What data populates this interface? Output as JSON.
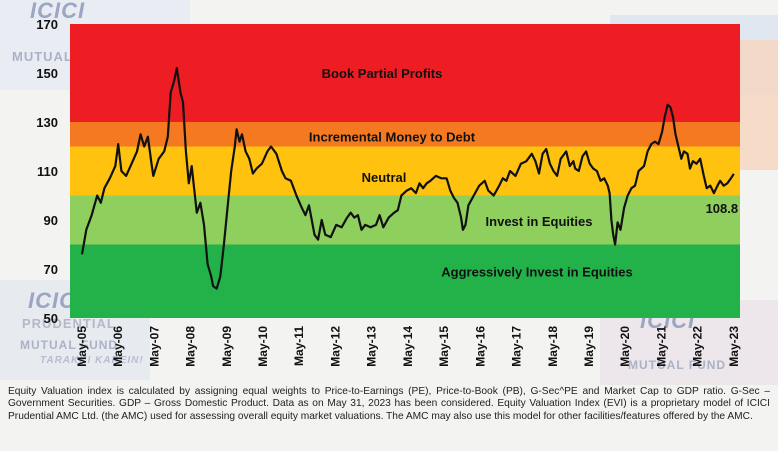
{
  "chart_data": {
    "type": "line",
    "ylim": [
      50,
      170
    ],
    "y_ticks": [
      50,
      70,
      90,
      110,
      130,
      150,
      170
    ],
    "x_tick_labels": [
      "May-05",
      "May-06",
      "May-07",
      "May-08",
      "May-09",
      "May-10",
      "May-11",
      "May-12",
      "May-13",
      "May-14",
      "May-15",
      "May-16",
      "May-17",
      "May-18",
      "May-19",
      "May-20",
      "May-21",
      "May-22",
      "May-23"
    ],
    "zones": [
      {
        "label": "Aggressively Invest in Equities",
        "from": 50,
        "to": 80,
        "color": "#23b24a"
      },
      {
        "label": "Invest in Equities",
        "from": 80,
        "to": 100,
        "color": "#8fcf5e"
      },
      {
        "label": "Neutral",
        "from": 100,
        "to": 120,
        "color": "#ffc20e"
      },
      {
        "label": "Incremental Money to Debt",
        "from": 120,
        "to": 130,
        "color": "#f47920"
      },
      {
        "label": "Book Partial Profits",
        "from": 130,
        "to": 170,
        "color": "#ee1d23"
      }
    ],
    "last_value_label": "108.8",
    "series": [
      {
        "color": "#111111",
        "points": [
          [
            2005.33,
            76
          ],
          [
            2005.45,
            86
          ],
          [
            2005.6,
            92
          ],
          [
            2005.75,
            100
          ],
          [
            2005.85,
            97
          ],
          [
            2005.95,
            103
          ],
          [
            2006.1,
            107
          ],
          [
            2006.25,
            112
          ],
          [
            2006.33,
            121
          ],
          [
            2006.42,
            110
          ],
          [
            2006.55,
            108
          ],
          [
            2006.7,
            113
          ],
          [
            2006.85,
            118
          ],
          [
            2006.95,
            125
          ],
          [
            2007.05,
            120
          ],
          [
            2007.15,
            124
          ],
          [
            2007.25,
            113
          ],
          [
            2007.3,
            108
          ],
          [
            2007.45,
            115
          ],
          [
            2007.6,
            118
          ],
          [
            2007.7,
            124
          ],
          [
            2007.78,
            142
          ],
          [
            2007.88,
            147
          ],
          [
            2007.95,
            152
          ],
          [
            2008.05,
            142
          ],
          [
            2008.12,
            138
          ],
          [
            2008.2,
            118
          ],
          [
            2008.28,
            105
          ],
          [
            2008.36,
            112
          ],
          [
            2008.45,
            100
          ],
          [
            2008.5,
            93
          ],
          [
            2008.6,
            97
          ],
          [
            2008.7,
            88
          ],
          [
            2008.8,
            72
          ],
          [
            2008.9,
            67
          ],
          [
            2008.95,
            63
          ],
          [
            2009.05,
            62
          ],
          [
            2009.15,
            67
          ],
          [
            2009.25,
            80
          ],
          [
            2009.35,
            95
          ],
          [
            2009.45,
            110
          ],
          [
            2009.55,
            120
          ],
          [
            2009.6,
            127
          ],
          [
            2009.68,
            122
          ],
          [
            2009.75,
            125
          ],
          [
            2009.85,
            118
          ],
          [
            2009.95,
            115
          ],
          [
            2010.05,
            109
          ],
          [
            2010.15,
            111
          ],
          [
            2010.3,
            113
          ],
          [
            2010.45,
            118
          ],
          [
            2010.55,
            120
          ],
          [
            2010.7,
            117
          ],
          [
            2010.85,
            110
          ],
          [
            2010.95,
            107
          ],
          [
            2011.1,
            106
          ],
          [
            2011.25,
            100
          ],
          [
            2011.4,
            95
          ],
          [
            2011.5,
            92
          ],
          [
            2011.6,
            96
          ],
          [
            2011.75,
            84
          ],
          [
            2011.85,
            82
          ],
          [
            2011.95,
            90
          ],
          [
            2012.05,
            84
          ],
          [
            2012.2,
            83
          ],
          [
            2012.35,
            88
          ],
          [
            2012.5,
            87
          ],
          [
            2012.65,
            91
          ],
          [
            2012.75,
            93
          ],
          [
            2012.85,
            91
          ],
          [
            2012.95,
            92
          ],
          [
            2013.05,
            86
          ],
          [
            2013.15,
            88
          ],
          [
            2013.3,
            87
          ],
          [
            2013.45,
            88
          ],
          [
            2013.55,
            92
          ],
          [
            2013.65,
            87
          ],
          [
            2013.8,
            91
          ],
          [
            2013.95,
            93
          ],
          [
            2014.05,
            94
          ],
          [
            2014.15,
            100
          ],
          [
            2014.3,
            102
          ],
          [
            2014.42,
            103
          ],
          [
            2014.55,
            101
          ],
          [
            2014.65,
            105
          ],
          [
            2014.75,
            103
          ],
          [
            2014.85,
            105
          ],
          [
            2014.95,
            106
          ],
          [
            2015.1,
            108
          ],
          [
            2015.25,
            107
          ],
          [
            2015.4,
            107
          ],
          [
            2015.5,
            102
          ],
          [
            2015.6,
            99
          ],
          [
            2015.7,
            97
          ],
          [
            2015.8,
            91
          ],
          [
            2015.85,
            86
          ],
          [
            2015.92,
            88
          ],
          [
            2016.0,
            96
          ],
          [
            2016.15,
            100
          ],
          [
            2016.3,
            104
          ],
          [
            2016.45,
            106
          ],
          [
            2016.55,
            102
          ],
          [
            2016.7,
            100
          ],
          [
            2016.85,
            104
          ],
          [
            2016.95,
            107
          ],
          [
            2017.05,
            106
          ],
          [
            2017.15,
            110
          ],
          [
            2017.3,
            108
          ],
          [
            2017.45,
            113
          ],
          [
            2017.6,
            114
          ],
          [
            2017.75,
            117
          ],
          [
            2017.85,
            114
          ],
          [
            2017.95,
            109
          ],
          [
            2018.05,
            117
          ],
          [
            2018.15,
            119
          ],
          [
            2018.25,
            113
          ],
          [
            2018.35,
            110
          ],
          [
            2018.45,
            108
          ],
          [
            2018.55,
            115
          ],
          [
            2018.7,
            118
          ],
          [
            2018.8,
            112
          ],
          [
            2018.9,
            114
          ],
          [
            2018.95,
            111
          ],
          [
            2019.05,
            110
          ],
          [
            2019.15,
            116
          ],
          [
            2019.25,
            118
          ],
          [
            2019.35,
            113
          ],
          [
            2019.45,
            111
          ],
          [
            2019.55,
            110
          ],
          [
            2019.65,
            106
          ],
          [
            2019.75,
            107
          ],
          [
            2019.85,
            104
          ],
          [
            2019.9,
            101
          ],
          [
            2019.95,
            90
          ],
          [
            2020.0,
            84
          ],
          [
            2020.05,
            80
          ],
          [
            2020.12,
            89
          ],
          [
            2020.2,
            86
          ],
          [
            2020.3,
            95
          ],
          [
            2020.4,
            100
          ],
          [
            2020.5,
            103
          ],
          [
            2020.6,
            104
          ],
          [
            2020.7,
            110
          ],
          [
            2020.85,
            112
          ],
          [
            2020.95,
            118
          ],
          [
            2021.05,
            121
          ],
          [
            2021.15,
            122
          ],
          [
            2021.25,
            121
          ],
          [
            2021.35,
            126
          ],
          [
            2021.42,
            132
          ],
          [
            2021.5,
            137
          ],
          [
            2021.58,
            136
          ],
          [
            2021.65,
            132
          ],
          [
            2021.72,
            125
          ],
          [
            2021.8,
            120
          ],
          [
            2021.88,
            115
          ],
          [
            2021.95,
            118
          ],
          [
            2022.05,
            117
          ],
          [
            2022.12,
            111
          ],
          [
            2022.2,
            114
          ],
          [
            2022.3,
            113
          ],
          [
            2022.4,
            115
          ],
          [
            2022.5,
            108
          ],
          [
            2022.58,
            103
          ],
          [
            2022.68,
            104
          ],
          [
            2022.78,
            101
          ],
          [
            2022.88,
            104
          ],
          [
            2022.95,
            106
          ],
          [
            2023.05,
            104
          ],
          [
            2023.15,
            105
          ],
          [
            2023.25,
            107
          ],
          [
            2023.33,
            108.8
          ]
        ]
      }
    ]
  },
  "footnote": "Equity Valuation index is calculated by assigning equal weights to Price-to-Earnings (PE), Price-to-Book (PB), G-Sec^PE and Market Cap to GDP ratio. G-Sec – Government Securities. GDP – Gross Domestic Product. Data as on May 31, 2023 has been considered. Equity Valuation Index (EVI) is a proprietary model of ICICI Prudential AMC Ltd. (the AMC) used for assessing overall equity market valuations. The AMC may also use this model for other facilities/features offered by the AMC.",
  "watermarks": {
    "brand_top": "ICICI",
    "brand_sub": "PRUDENTIAL",
    "brand_line2": "MUTUAL FUND",
    "tagline": "TARAKKI KAREIN!"
  }
}
